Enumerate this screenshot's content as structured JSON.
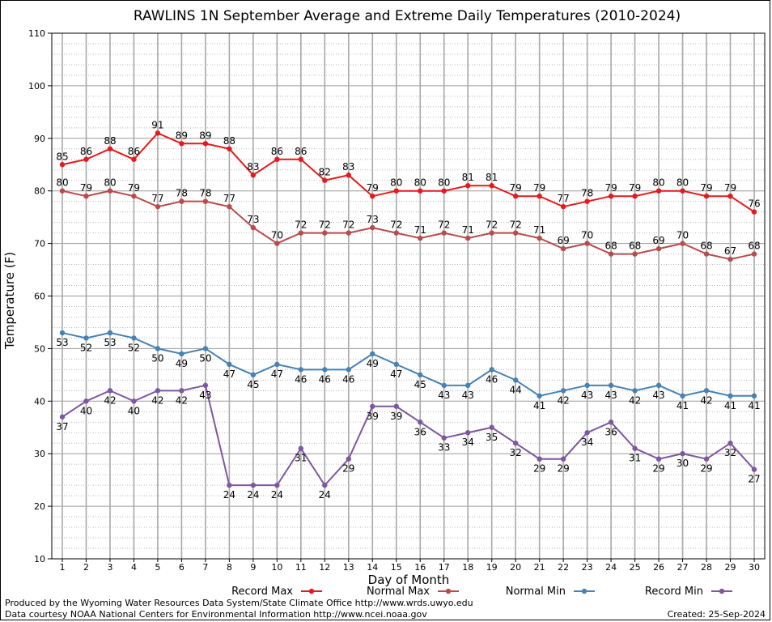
{
  "chart_data": {
    "type": "line",
    "title": "RAWLINS 1N September Average and Extreme Daily Temperatures (2010-2024)",
    "xlabel": "Day of Month",
    "ylabel": "Temperature (F)",
    "xlim": [
      1,
      30
    ],
    "ylim": [
      10,
      110
    ],
    "y_ticks": [
      10,
      20,
      30,
      40,
      50,
      60,
      70,
      80,
      90,
      100,
      110
    ],
    "x_ticks": [
      1,
      2,
      3,
      4,
      5,
      6,
      7,
      8,
      9,
      10,
      11,
      12,
      13,
      14,
      15,
      16,
      17,
      18,
      19,
      20,
      21,
      22,
      23,
      24,
      25,
      26,
      27,
      28,
      29,
      30
    ],
    "grid": true,
    "legend_position": "bottom",
    "series": [
      {
        "name": "Record Max",
        "color": "#e41a1c",
        "label_position": "above",
        "values": [
          85,
          86,
          88,
          86,
          91,
          89,
          89,
          88,
          83,
          86,
          86,
          82,
          83,
          79,
          80,
          80,
          80,
          81,
          81,
          79,
          79,
          77,
          78,
          79,
          79,
          80,
          80,
          79,
          79,
          76
        ]
      },
      {
        "name": "Normal Max",
        "color": "#b84c4c",
        "label_position": "above",
        "values": [
          80,
          79,
          80,
          79,
          77,
          78,
          78,
          77,
          73,
          70,
          72,
          72,
          72,
          73,
          72,
          71,
          72,
          71,
          72,
          72,
          71,
          69,
          70,
          68,
          68,
          69,
          70,
          68,
          67,
          68
        ]
      },
      {
        "name": "Normal Min",
        "color": "#4682b4",
        "label_position": "below",
        "values": [
          53,
          52,
          53,
          52,
          50,
          49,
          50,
          47,
          45,
          47,
          46,
          46,
          46,
          49,
          47,
          45,
          43,
          43,
          46,
          44,
          41,
          42,
          43,
          43,
          42,
          43,
          41,
          42,
          41,
          41
        ]
      },
      {
        "name": "Record Min",
        "color": "#7e57a0",
        "label_position": "below",
        "values": [
          37,
          40,
          42,
          40,
          42,
          42,
          43,
          24,
          24,
          24,
          31,
          24,
          29,
          39,
          39,
          36,
          33,
          34,
          35,
          32,
          29,
          29,
          34,
          36,
          31,
          29,
          30,
          29,
          32,
          27
        ]
      }
    ]
  },
  "footer": {
    "credit_line_1": "Produced by the Wyoming Water Resources Data System/State Climate Office http://www.wrds.uwyo.edu",
    "credit_line_2": "Data courtesy NOAA National Centers for Environmental Information http://www.ncei.noaa.gov",
    "created": "Created:  25-Sep-2024"
  }
}
